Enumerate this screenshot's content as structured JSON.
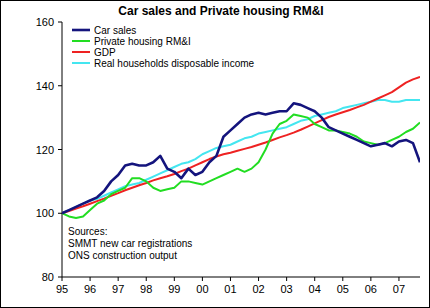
{
  "chart_data": {
    "type": "line",
    "title": "Car sales and Private housing RM&I",
    "categories": [
      "95",
      null,
      null,
      null,
      "96",
      null,
      null,
      null,
      "97",
      null,
      null,
      null,
      "98",
      null,
      null,
      null,
      "99",
      null,
      null,
      null,
      "00",
      null,
      null,
      null,
      "01",
      null,
      null,
      null,
      "02",
      null,
      null,
      null,
      "03",
      null,
      null,
      null,
      "04",
      null,
      null,
      null,
      "05",
      null,
      null,
      null,
      "06",
      null,
      null,
      null,
      "07",
      null,
      null,
      null
    ],
    "series": [
      {
        "name": "Car sales",
        "color": "#14147d",
        "values": [
          100,
          101,
          102,
          103,
          104,
          105,
          107,
          110,
          112,
          115,
          115.5,
          115,
          115,
          116,
          118,
          114,
          113,
          111,
          114,
          112,
          113,
          116,
          118,
          124,
          126,
          128,
          130,
          131,
          131.5,
          131,
          131.5,
          132,
          132,
          134.5,
          134,
          133,
          132,
          130,
          127,
          126,
          125,
          124,
          123,
          122,
          121,
          121.5,
          122,
          121,
          122.5,
          123,
          122,
          116
        ]
      },
      {
        "name": "Private housing RM&I",
        "color": "#22dd22",
        "values": [
          100,
          99,
          98.5,
          99,
          101,
          103,
          104,
          106,
          107,
          108,
          111,
          111,
          110,
          108,
          107,
          107.5,
          108,
          110,
          110,
          109.5,
          109,
          110,
          111,
          112,
          113,
          114,
          113,
          114,
          116,
          120,
          125,
          128,
          129,
          131,
          130.5,
          130,
          128,
          127,
          126,
          126,
          125.5,
          125,
          124,
          122.5,
          122,
          121.5,
          122,
          123,
          124,
          125.5,
          126.5,
          128.5
        ]
      },
      {
        "name": "GDP",
        "color": "#ee2222",
        "values": [
          100,
          100.7,
          101.5,
          102.2,
          103,
          103.8,
          104.6,
          105.5,
          106.3,
          107.2,
          108,
          108.8,
          109.5,
          110.3,
          111,
          111.6,
          112.3,
          113.2,
          114,
          115,
          116,
          117,
          117.8,
          118.5,
          119,
          119.6,
          120.2,
          120.8,
          121.5,
          122.2,
          123,
          123.8,
          124.5,
          125.3,
          126.2,
          127.2,
          128.2,
          129.2,
          130.2,
          131,
          131.7,
          132.4,
          133.2,
          134,
          135,
          136,
          137,
          138,
          139.5,
          141,
          142,
          142.8
        ]
      },
      {
        "name": "Real households disposable income",
        "color": "#44e6f0",
        "values": [
          100,
          101,
          102,
          103,
          104,
          104.5,
          105.5,
          106.5,
          107.5,
          108.5,
          109,
          109.5,
          110.5,
          111.5,
          112.5,
          113.5,
          114.5,
          115.5,
          116,
          117,
          118.5,
          119.5,
          120.5,
          121,
          121.5,
          122.5,
          123.5,
          124,
          125,
          125.5,
          126,
          126.5,
          127,
          128,
          129,
          129.5,
          130.5,
          131,
          131.5,
          132,
          133,
          133.5,
          134,
          134.5,
          135,
          135.5,
          135.5,
          135,
          135,
          135.5,
          135.5,
          135.5
        ]
      }
    ],
    "ylim": [
      80,
      160
    ],
    "yticks": [
      80,
      100,
      120,
      140,
      160
    ],
    "grid": false,
    "legend": "top-left",
    "annotations": [
      "Sources:",
      "SMMT new car registrations",
      "ONS construction output"
    ]
  }
}
